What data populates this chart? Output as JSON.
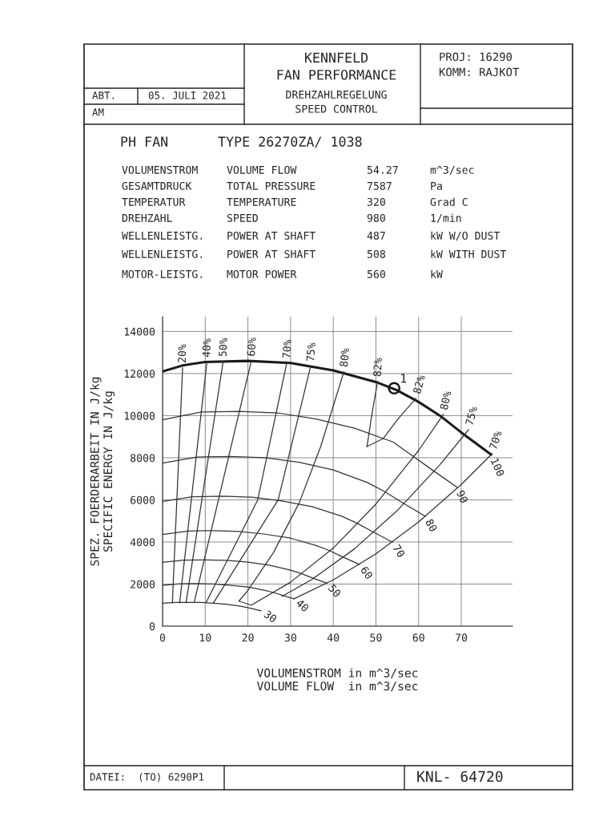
{
  "chart_data": {
    "type": "line",
    "title": "KENNFELD\nFAN PERFORMANCE",
    "subtitle": "DREHZAHLREGELUNG\nSPEED CONTROL",
    "xlabel": "VOLUMENSTROM in m^3/sec\nVOLUME FLOW  in m^3/sec",
    "ylabel": "SPEZ. FOERDERARBEIT IN J/kg\nSPECIFIC ENERGY IN J/kg",
    "xlim": [
      0,
      82
    ],
    "ylim": [
      0,
      14700
    ],
    "xticks": [
      0,
      10,
      20,
      30,
      40,
      50,
      60,
      70
    ],
    "yticks": [
      0,
      2000,
      4000,
      6000,
      8000,
      10000,
      12000,
      14000
    ],
    "grid": true,
    "legend": false,
    "marker": "none",
    "line_style": "solid",
    "series": [
      {
        "name": "100",
        "color": "#1a1a1a",
        "x": [
          0,
          5,
          10,
          20,
          30,
          40,
          50,
          55,
          60,
          65,
          70,
          77
        ],
        "values": [
          12100,
          12400,
          12550,
          12600,
          12500,
          12150,
          11600,
          11200,
          10650,
          10000,
          9200,
          8150
        ]
      },
      {
        "name": "90",
        "color": "#333333",
        "x": [
          0,
          9,
          18,
          27,
          36,
          45,
          54,
          58.5,
          63,
          69
        ],
        "values": [
          9800,
          10170,
          10200,
          10130,
          9840,
          9400,
          8750,
          8100,
          7450,
          6600
        ]
      },
      {
        "name": "80",
        "color": "#333333",
        "x": [
          0,
          8,
          16,
          24,
          32,
          40,
          48,
          52,
          56,
          61.6
        ],
        "values": [
          7740,
          8030,
          8060,
          8000,
          7780,
          7420,
          6820,
          6400,
          5890,
          5220
        ]
      },
      {
        "name": "70",
        "color": "#333333",
        "x": [
          0,
          7,
          14,
          21,
          28,
          35,
          42,
          45.5,
          49,
          53.9
        ],
        "values": [
          5930,
          6150,
          6170,
          6130,
          5950,
          5680,
          5220,
          4900,
          4510,
          3990
        ]
      },
      {
        "name": "60",
        "color": "#333333",
        "x": [
          0,
          6,
          12,
          18,
          24,
          30,
          36,
          39,
          42,
          46.2
        ],
        "values": [
          4360,
          4520,
          4540,
          4500,
          4370,
          4180,
          3830,
          3600,
          3310,
          2930
        ]
      },
      {
        "name": "50",
        "color": "#333333",
        "x": [
          0,
          5,
          10,
          15,
          20,
          25,
          30,
          32.5,
          35,
          38.5
        ],
        "values": [
          3030,
          3140,
          3150,
          3130,
          3040,
          2900,
          2660,
          2500,
          2300,
          2040
        ]
      },
      {
        "name": "40",
        "color": "#333333",
        "x": [
          0,
          4,
          8,
          12,
          16,
          20,
          24,
          26,
          28,
          30.8
        ],
        "values": [
          1940,
          2010,
          2020,
          2000,
          1940,
          1860,
          1700,
          1600,
          1470,
          1300
        ]
      },
      {
        "name": "30",
        "color": "#333333",
        "x": [
          0,
          3,
          6,
          9,
          12,
          15,
          18,
          19.5,
          21,
          23.1
        ],
        "values": [
          1090,
          1130,
          1130,
          1130,
          1090,
          1040,
          960,
          900,
          830,
          730
        ]
      },
      {
        "name": "20%",
        "color": "#333333",
        "x": [
          2.3,
          4.7
        ],
        "values": [
          1110,
          12280
        ]
      },
      {
        "name": "40%",
        "color": "#333333",
        "x": [
          4.0,
          10.4
        ],
        "values": [
          1110,
          12550
        ]
      },
      {
        "name": "50%",
        "color": "#333333",
        "x": [
          5.5,
          14.2
        ],
        "values": [
          1110,
          12580
        ]
      },
      {
        "name": "60%",
        "color": "#333333",
        "x": [
          7.4,
          20.8
        ],
        "values": [
          1120,
          12600
        ]
      },
      {
        "name": "70%",
        "color": "#333333",
        "x": [
          10.2,
          22.3,
          29.1
        ],
        "values": [
          1120,
          6000,
          12500
        ]
      },
      {
        "name": "75%",
        "color": "#333333",
        "x": [
          11.9,
          27.1,
          34.7
        ],
        "values": [
          1100,
          6000,
          12350
        ]
      },
      {
        "name": "80%",
        "color": "#333333",
        "x": [
          17.9,
          20,
          26,
          32,
          37,
          42.5
        ],
        "values": [
          1190,
          1700,
          3500,
          5850,
          8500,
          12090
        ]
      },
      {
        "name": "82%",
        "color": "#333333",
        "x": [
          47.9,
          49,
          50.4
        ],
        "values": [
          8530,
          10000,
          11630
        ]
      },
      {
        "name": "82%",
        "color": "#333333",
        "x": [
          47.9,
          51.7,
          55,
          59.4
        ],
        "values": [
          8530,
          8910,
          9800,
          10830
        ]
      },
      {
        "name": "80%",
        "color": "#333333",
        "x": [
          17.9,
          20.8,
          30,
          40,
          50,
          60,
          65.8
        ],
        "values": [
          1190,
          1000,
          2090,
          3710,
          5800,
          8350,
          10060
        ]
      },
      {
        "name": "75%",
        "color": "#333333",
        "x": [
          28,
          35,
          45,
          55,
          65,
          71.7
        ],
        "values": [
          1420,
          2220,
          3680,
          5490,
          7670,
          9330
        ]
      },
      {
        "name": "70%",
        "color": "#333333",
        "x": [
          30.8,
          40,
          50,
          60,
          70,
          77.2
        ],
        "values": [
          1300,
          2200,
          3440,
          4950,
          6730,
          8190
        ]
      },
      {
        "type": "scatter",
        "marker": "circle",
        "color": "#1a1a1a",
        "x": [
          54.27
        ],
        "values": [
          11300
        ]
      }
    ],
    "annotations": [
      "ABT.",
      "05. JULI 2021",
      "AM",
      "PROJ: 16290",
      "KOMM: RAJKOT",
      "PH FAN",
      "TYPE 26270ZA/ 1038",
      "VOLUMENSTROM",
      "VOLUME FLOW",
      "54.27",
      "m^3/sec",
      "GESAMTDRUCK",
      "TOTAL PRESSURE",
      "7587",
      "Pa",
      "TEMPERATUR",
      "TEMPERATURE",
      "320",
      "Grad C",
      "DREHZAHL",
      "SPEED",
      "980",
      "1/min",
      "WELLENLEISTG.",
      "POWER AT SHAFT",
      "487",
      "kW W/O DUST",
      "WELLENLEISTG.",
      "POWER AT SHAFT",
      "508",
      "kW WITH DUST",
      "MOTOR-LEISTG.",
      "MOTOR POWER",
      "560",
      "kW",
      "DATEI:  (TO) 6290P1",
      "KNL- 64720",
      {
        "text": "1",
        "x": 54.27,
        "y": 11300
      }
    ]
  }
}
